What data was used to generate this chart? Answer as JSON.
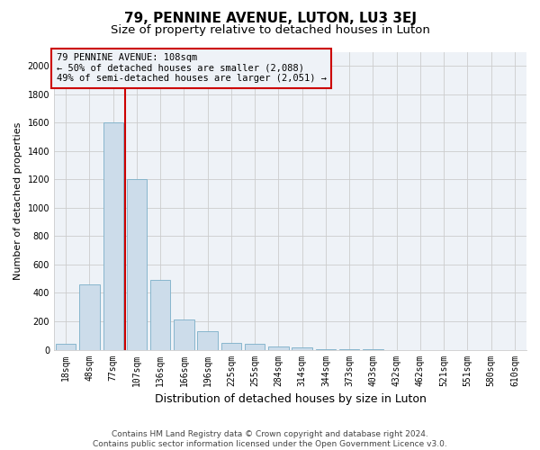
{
  "title": "79, PENNINE AVENUE, LUTON, LU3 3EJ",
  "subtitle": "Size of property relative to detached houses in Luton",
  "xlabel": "Distribution of detached houses by size in Luton",
  "ylabel": "Number of detached properties",
  "footer_line1": "Contains HM Land Registry data © Crown copyright and database right 2024.",
  "footer_line2": "Contains public sector information licensed under the Open Government Licence v3.0.",
  "bar_labels": [
    "18sqm",
    "48sqm",
    "77sqm",
    "107sqm",
    "136sqm",
    "166sqm",
    "196sqm",
    "225sqm",
    "255sqm",
    "284sqm",
    "314sqm",
    "344sqm",
    "373sqm",
    "403sqm",
    "432sqm",
    "462sqm",
    "521sqm",
    "551sqm",
    "580sqm",
    "610sqm"
  ],
  "bar_values": [
    40,
    460,
    1600,
    1200,
    490,
    210,
    130,
    50,
    40,
    25,
    15,
    5,
    2,
    1,
    0,
    0,
    0,
    0,
    0,
    0
  ],
  "bar_color": "#ccdcea",
  "bar_edge_color": "#7aafc8",
  "grid_color": "#cccccc",
  "background_color": "#ffffff",
  "plot_bg_color": "#eef2f7",
  "annotation_text": "79 PENNINE AVENUE: 108sqm\n← 50% of detached houses are smaller (2,088)\n49% of semi-detached houses are larger (2,051) →",
  "annotation_box_color": "#cc0000",
  "vline_x_index": 3,
  "vline_color": "#cc0000",
  "ylim": [
    0,
    2100
  ],
  "yticks": [
    0,
    200,
    400,
    600,
    800,
    1000,
    1200,
    1400,
    1600,
    1800,
    2000
  ],
  "title_fontsize": 11,
  "subtitle_fontsize": 9.5,
  "xlabel_fontsize": 9,
  "ylabel_fontsize": 8,
  "tick_fontsize": 7,
  "annotation_fontsize": 7.5,
  "footer_fontsize": 6.5
}
